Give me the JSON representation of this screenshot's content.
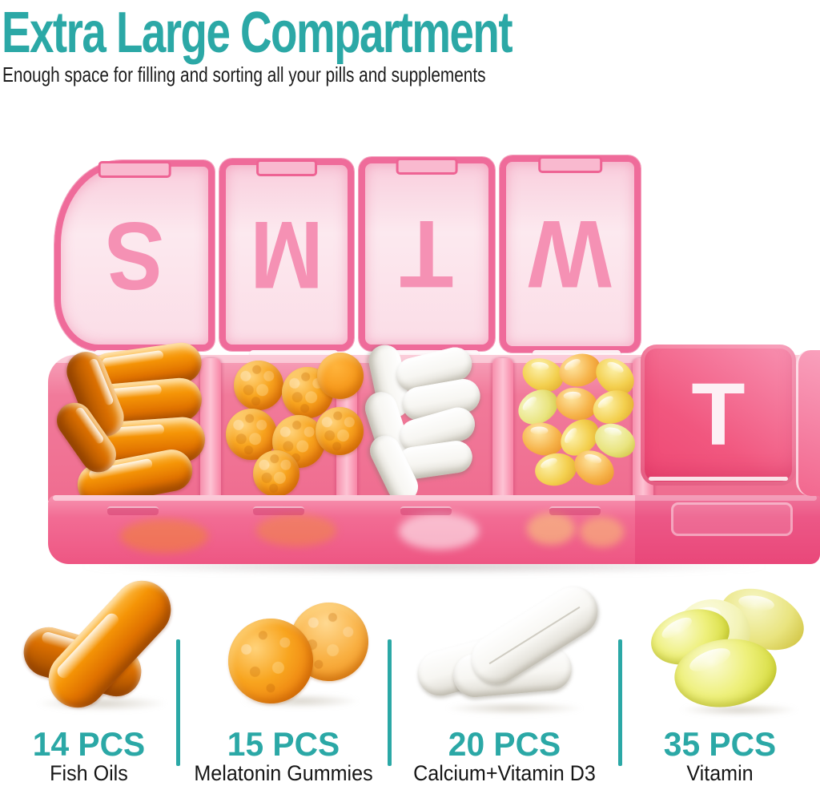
{
  "header": {
    "title": "Extra Large Compartment",
    "subtitle": "Enough space for filling and sorting all your pills and supplements"
  },
  "colors": {
    "accent_teal": "#2ba8a6",
    "lid_pink": "#ef6b9a",
    "deep_pink": "#ee4a79",
    "pale_lid_face": "#fce9ef"
  },
  "organizer": {
    "open_lids": [
      {
        "letter": "S"
      },
      {
        "letter": "M"
      },
      {
        "letter": "T"
      },
      {
        "letter": "W"
      }
    ],
    "closed_lids": [
      {
        "letter": "T"
      }
    ],
    "compartments": [
      {
        "contents": "fish oil capsules"
      },
      {
        "contents": "melatonin gummies"
      },
      {
        "contents": "calcium tablets"
      },
      {
        "contents": "vitamin softgels"
      }
    ]
  },
  "callouts": [
    {
      "count": "14 PCS",
      "name": "Fish Oils"
    },
    {
      "count": "15 PCS",
      "name": "Melatonin Gummies"
    },
    {
      "count": "20 PCS",
      "name": "Calcium+Vitamin D3"
    },
    {
      "count": "35 PCS",
      "name": "Vitamin"
    }
  ]
}
